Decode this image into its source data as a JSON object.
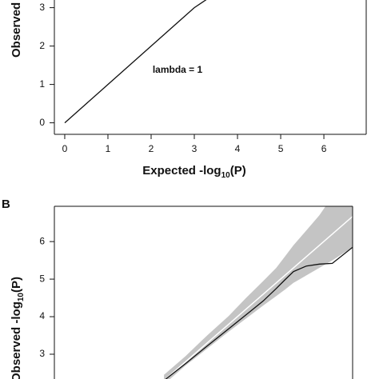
{
  "chart_data": [
    {
      "type": "qq",
      "x_label": {
        "text": "Expected -log",
        "sub": "10",
        "tail": "(P)"
      },
      "y_label": {
        "text": "Observed -log",
        "sub": "10",
        "tail": "(P)"
      },
      "annotation": "lambda = 1",
      "x": [
        0,
        0.5,
        1,
        1.5,
        2,
        2.5,
        3,
        3.28
      ],
      "series": [
        {
          "color": "#111111",
          "values": [
            0,
            0.5,
            1,
            1.5,
            2,
            2.5,
            3,
            3.21
          ]
        }
      ],
      "xlim": [
        -0.24,
        6.98
      ],
      "ylim": [
        -0.3,
        3.2
      ],
      "xticks": [
        0,
        1,
        2,
        3,
        4,
        5,
        6
      ],
      "yticks": [
        0,
        1,
        2,
        3
      ]
    },
    {
      "type": "qq-band",
      "label": "B",
      "y_label": {
        "text": "Observed -log",
        "sub": "10",
        "tail": "(P)"
      },
      "x": [
        2.3,
        2.8,
        3.3,
        3.8,
        4.2,
        4.6,
        4.9,
        5.1,
        5.3,
        5.6,
        5.9,
        6.2,
        6.67
      ],
      "series": [
        {
          "color": "#111111",
          "values": [
            2.3,
            2.75,
            3.22,
            3.68,
            4.05,
            4.42,
            4.75,
            4.98,
            5.2,
            5.35,
            5.4,
            5.42,
            5.85
          ]
        }
      ],
      "ci_lower": [
        2.2,
        2.7,
        3.15,
        3.6,
        3.95,
        4.3,
        4.55,
        4.72,
        4.9,
        5.1,
        5.3,
        5.5,
        5.85
      ],
      "ci_upper": [
        2.45,
        2.95,
        3.5,
        4.02,
        4.5,
        4.95,
        5.3,
        5.6,
        5.9,
        6.3,
        6.7,
        7.2,
        7.6
      ],
      "band_color": "#c4c4c4",
      "expected_color": "#ffffff",
      "xlim": [
        -0.24,
        6.67
      ],
      "ylim": [
        2.34,
        6.94
      ],
      "yticks": [
        3,
        4,
        5,
        6
      ]
    }
  ]
}
